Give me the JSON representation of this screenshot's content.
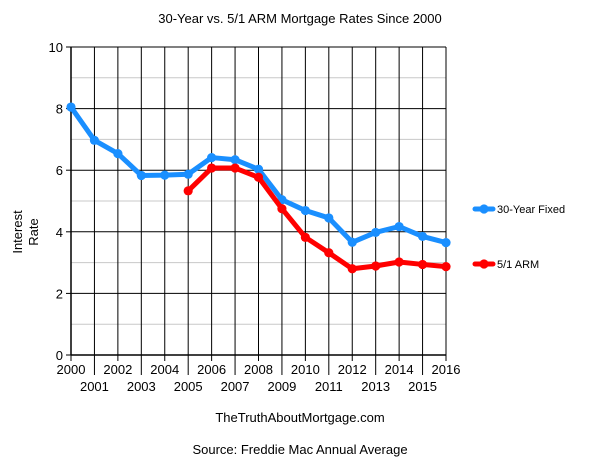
{
  "chart_data": {
    "type": "line",
    "title": "30-Year vs. 5/1 ARM Mortgage Rates Since 2000",
    "xlabel": "",
    "ylabel": "Interest Rate",
    "ylabel_lines": [
      "Interest",
      "Rate"
    ],
    "x": [
      2000,
      2001,
      2002,
      2003,
      2004,
      2005,
      2006,
      2007,
      2008,
      2009,
      2010,
      2011,
      2012,
      2013,
      2014,
      2015,
      2016
    ],
    "xlim": [
      2000,
      2016
    ],
    "ylim": [
      0,
      10
    ],
    "yticks": [
      0,
      2,
      4,
      6,
      8,
      10
    ],
    "grid": true,
    "legend_position": "right",
    "series": [
      {
        "name": "30-Year Fixed",
        "color": "#1a8fff",
        "x": [
          2000,
          2001,
          2002,
          2003,
          2004,
          2005,
          2006,
          2007,
          2008,
          2009,
          2010,
          2011,
          2012,
          2013,
          2014,
          2015,
          2016
        ],
        "values": [
          8.05,
          6.97,
          6.54,
          5.83,
          5.84,
          5.87,
          6.41,
          6.34,
          6.03,
          5.04,
          4.69,
          4.45,
          3.66,
          3.98,
          4.17,
          3.85,
          3.65
        ]
      },
      {
        "name": "5/1 ARM",
        "color": "#ff0000",
        "x": [
          2005,
          2006,
          2007,
          2008,
          2009,
          2010,
          2011,
          2012,
          2013,
          2014,
          2015,
          2016
        ],
        "values": [
          5.33,
          6.07,
          6.07,
          5.77,
          4.75,
          3.82,
          3.32,
          2.8,
          2.89,
          3.02,
          2.94,
          2.87
        ]
      }
    ]
  },
  "footer": {
    "website": "TheTruthAboutMortgage.com",
    "source": "Source: Freddie Mac Annual Average"
  }
}
